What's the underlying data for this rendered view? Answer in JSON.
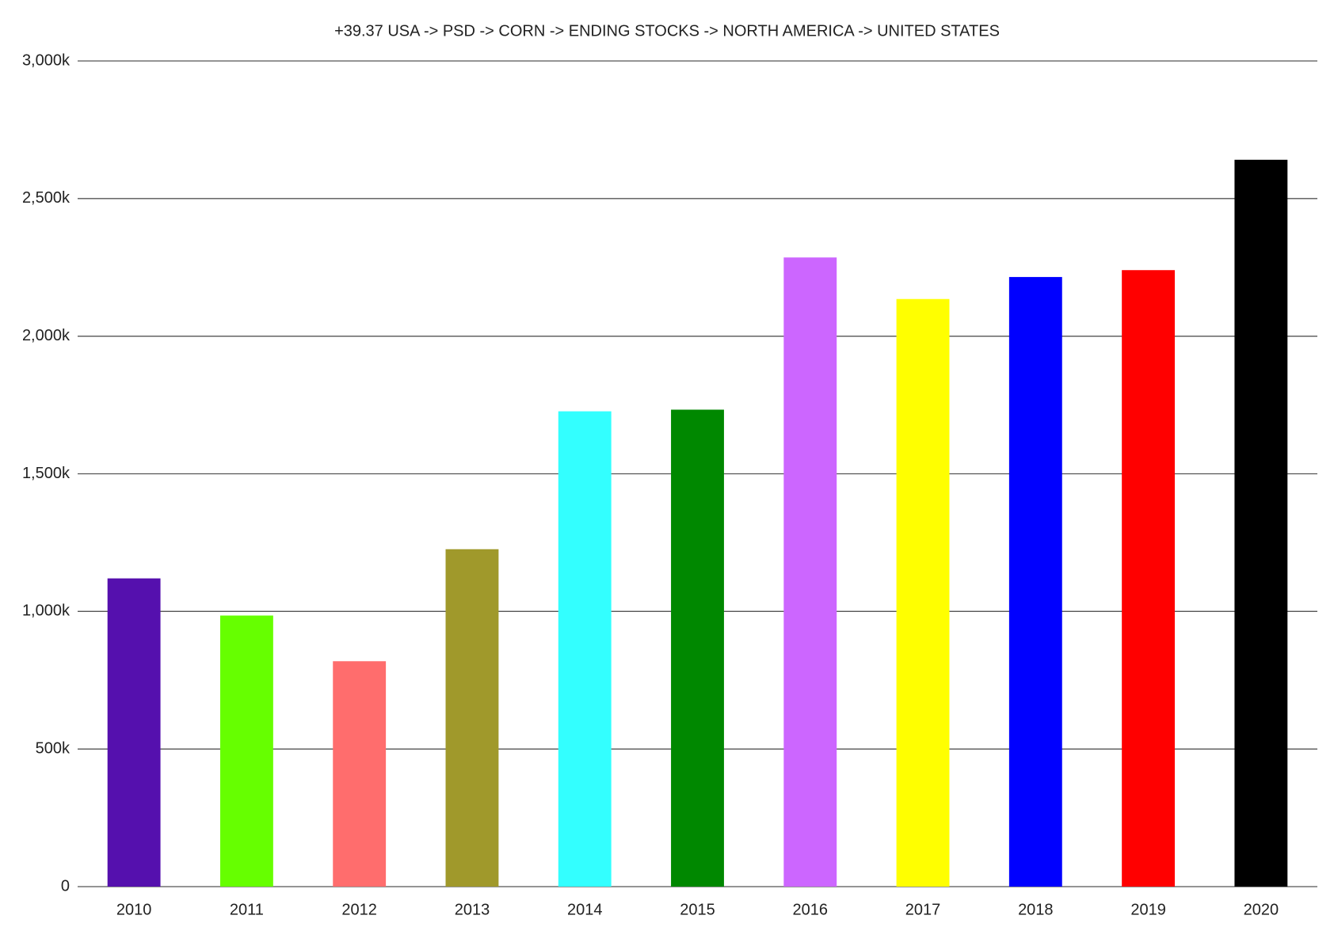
{
  "chart_data": {
    "type": "bar",
    "title": "+39.37 USA -> PSD -> CORN -> ENDING STOCKS -> NORTH AMERICA -> UNITED STATES",
    "categories": [
      "2010",
      "2011",
      "2012",
      "2013",
      "2014",
      "2015",
      "2016",
      "2017",
      "2018",
      "2019",
      "2020"
    ],
    "values": [
      1120,
      985,
      819,
      1226,
      1727,
      1733,
      2286,
      2135,
      2215,
      2240,
      2641
    ],
    "colors": [
      "#5510ae",
      "#66ff00",
      "#ff6d6d",
      "#a0992b",
      "#33ffff",
      "#008800",
      "#cc66ff",
      "#ffff00",
      "#0000ff",
      "#ff0000",
      "#000000"
    ],
    "ylim": [
      0,
      3000
    ],
    "yticks": [
      0,
      {
        "value": 500,
        "label": "500k"
      },
      {
        "value": 1000,
        "label": "1,000k"
      },
      {
        "value": 1500,
        "label": "1,500k"
      },
      {
        "value": 2000,
        "label": "2,000k"
      },
      {
        "value": 2500,
        "label": "2,500k"
      },
      {
        "value": 3000,
        "label": "3,000k"
      }
    ],
    "grid": true
  }
}
